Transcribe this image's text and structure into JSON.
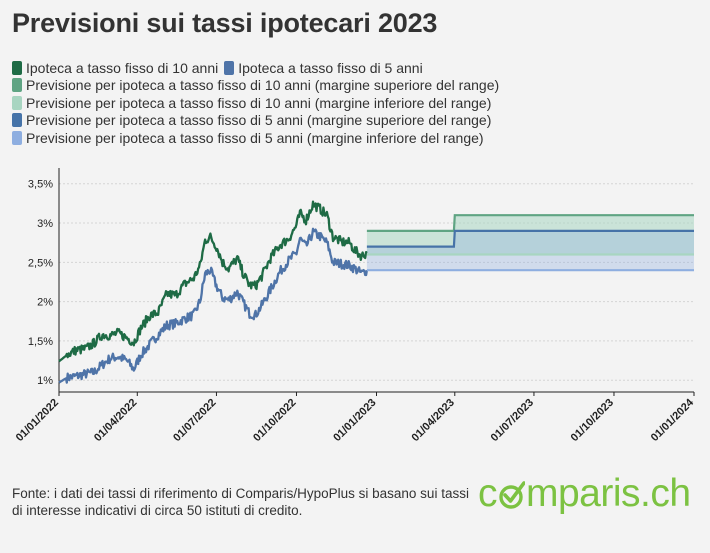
{
  "title": "Previsioni sui tassi ipotecari 2023",
  "legend": [
    {
      "label": "Ipoteca a tasso fisso di 10 anni",
      "color": "#1e6b45"
    },
    {
      "label": "Ipoteca a tasso fisso di 5 anni",
      "color": "#4f74a8"
    },
    {
      "label": "Previsione per ipoteca a tasso fisso di 10 anni (margine superiore del range)",
      "color": "#5fa483"
    },
    {
      "label": "Previsione per ipoteca a tasso fisso di 10 anni (margine inferiore del range)",
      "color": "#a8d5c1"
    },
    {
      "label": "Previsione per ipoteca a tasso fisso di 5 anni (margine superiore del range)",
      "color": "#4673a8"
    },
    {
      "label": "Previsione per ipoteca a tasso fisso di 5 anni (margine inferiore del range)",
      "color": "#8eaee0"
    }
  ],
  "source_text": "Fonte: i dati dei tassi di riferimento di Comparis/HypoPlus si basano sui tassi di interesse indicativi di circa 50 istituti di credito.",
  "logo": {
    "before": "c",
    "after": "mparis.ch"
  },
  "chart_data": {
    "type": "line",
    "x_range": [
      "2022-01-01",
      "2024-01-01"
    ],
    "ylim": [
      0.85,
      3.7
    ],
    "y_ticks": [
      1,
      1.5,
      2,
      2.5,
      3,
      3.5
    ],
    "y_tick_labels": [
      "1%",
      "1,5%",
      "2%",
      "2,5%",
      "3%",
      "3,5%"
    ],
    "x_ticks": [
      "2022-01-01",
      "2022-04-01",
      "2022-07-01",
      "2022-10-01",
      "2023-01-01",
      "2023-04-01",
      "2023-07-01",
      "2023-10-01",
      "2024-01-01"
    ],
    "x_tick_labels": [
      "01/01/2022",
      "01/04/2022",
      "01/07/2022",
      "01/10/2022",
      "01/01/2023",
      "01/04/2023",
      "01/07/2023",
      "01/10/2023",
      "01/01/2024"
    ],
    "grid": "horizontal",
    "series": [
      {
        "name": "Ipoteca a tasso fisso di 10 anni",
        "color": "#1e6b45",
        "points": [
          [
            "2022-01-01",
            1.24
          ],
          [
            "2022-01-10",
            1.32
          ],
          [
            "2022-01-20",
            1.38
          ],
          [
            "2022-02-01",
            1.4
          ],
          [
            "2022-02-10",
            1.47
          ],
          [
            "2022-02-20",
            1.58
          ],
          [
            "2022-03-01",
            1.57
          ],
          [
            "2022-03-10",
            1.6
          ],
          [
            "2022-03-20",
            1.54
          ],
          [
            "2022-03-28",
            1.48
          ],
          [
            "2022-04-05",
            1.66
          ],
          [
            "2022-04-15",
            1.82
          ],
          [
            "2022-04-25",
            1.86
          ],
          [
            "2022-05-05",
            2.1
          ],
          [
            "2022-05-15",
            2.08
          ],
          [
            "2022-05-25",
            2.22
          ],
          [
            "2022-06-05",
            2.3
          ],
          [
            "2022-06-12",
            2.45
          ],
          [
            "2022-06-18",
            2.78
          ],
          [
            "2022-06-24",
            2.82
          ],
          [
            "2022-07-01",
            2.7
          ],
          [
            "2022-07-08",
            2.5
          ],
          [
            "2022-07-15",
            2.42
          ],
          [
            "2022-07-25",
            2.55
          ],
          [
            "2022-08-01",
            2.35
          ],
          [
            "2022-08-08",
            2.21
          ],
          [
            "2022-08-15",
            2.2
          ],
          [
            "2022-08-22",
            2.32
          ],
          [
            "2022-09-01",
            2.55
          ],
          [
            "2022-09-12",
            2.72
          ],
          [
            "2022-09-22",
            2.8
          ],
          [
            "2022-10-01",
            2.97
          ],
          [
            "2022-10-05",
            3.12
          ],
          [
            "2022-10-12",
            3.04
          ],
          [
            "2022-10-20",
            3.24
          ],
          [
            "2022-10-28",
            3.18
          ],
          [
            "2022-11-05",
            3.1
          ],
          [
            "2022-11-12",
            2.82
          ],
          [
            "2022-11-22",
            2.76
          ],
          [
            "2022-12-01",
            2.75
          ],
          [
            "2022-12-07",
            2.65
          ],
          [
            "2022-12-15",
            2.58
          ],
          [
            "2022-12-21",
            2.62
          ]
        ]
      },
      {
        "name": "Ipoteca a tasso fisso di 5 anni",
        "color": "#4f74a8",
        "points": [
          [
            "2022-01-01",
            0.97
          ],
          [
            "2022-01-10",
            1.03
          ],
          [
            "2022-01-20",
            1.05
          ],
          [
            "2022-02-01",
            1.08
          ],
          [
            "2022-02-10",
            1.1
          ],
          [
            "2022-02-20",
            1.2
          ],
          [
            "2022-03-01",
            1.28
          ],
          [
            "2022-03-10",
            1.3
          ],
          [
            "2022-03-20",
            1.25
          ],
          [
            "2022-03-28",
            1.14
          ],
          [
            "2022-04-05",
            1.32
          ],
          [
            "2022-04-15",
            1.45
          ],
          [
            "2022-04-25",
            1.58
          ],
          [
            "2022-05-05",
            1.7
          ],
          [
            "2022-05-15",
            1.72
          ],
          [
            "2022-05-25",
            1.78
          ],
          [
            "2022-06-05",
            1.83
          ],
          [
            "2022-06-12",
            2.0
          ],
          [
            "2022-06-18",
            2.35
          ],
          [
            "2022-06-24",
            2.4
          ],
          [
            "2022-07-01",
            2.2
          ],
          [
            "2022-07-08",
            2.05
          ],
          [
            "2022-07-15",
            2.02
          ],
          [
            "2022-07-25",
            2.12
          ],
          [
            "2022-08-01",
            1.98
          ],
          [
            "2022-08-08",
            1.85
          ],
          [
            "2022-08-15",
            1.83
          ],
          [
            "2022-08-22",
            1.95
          ],
          [
            "2022-09-01",
            2.15
          ],
          [
            "2022-09-12",
            2.38
          ],
          [
            "2022-09-22",
            2.52
          ],
          [
            "2022-10-01",
            2.62
          ],
          [
            "2022-10-05",
            2.8
          ],
          [
            "2022-10-12",
            2.7
          ],
          [
            "2022-10-20",
            2.88
          ],
          [
            "2022-10-28",
            2.83
          ],
          [
            "2022-11-05",
            2.75
          ],
          [
            "2022-11-12",
            2.5
          ],
          [
            "2022-11-22",
            2.48
          ],
          [
            "2022-12-01",
            2.46
          ],
          [
            "2022-12-07",
            2.42
          ],
          [
            "2022-12-15",
            2.36
          ],
          [
            "2022-12-21",
            2.4
          ]
        ]
      },
      {
        "name": "Previsione per ipoteca a tasso fisso di 10 anni (margine superiore del range)",
        "color": "#5fa483",
        "points": [
          [
            "2022-12-21",
            2.9
          ],
          [
            "2023-03-31",
            2.9
          ],
          [
            "2023-04-01",
            3.1
          ],
          [
            "2024-01-01",
            3.1
          ]
        ]
      },
      {
        "name": "Previsione per ipoteca a tasso fisso di 10 anni (margine inferiore del range)",
        "color": "#a8d5c1",
        "points": [
          [
            "2022-12-21",
            2.6
          ],
          [
            "2024-01-01",
            2.6
          ]
        ]
      },
      {
        "name": "Previsione per ipoteca a tasso fisso di 5 anni (margine superiore del range)",
        "color": "#4673a8",
        "points": [
          [
            "2022-12-21",
            2.7
          ],
          [
            "2023-03-31",
            2.7
          ],
          [
            "2023-04-01",
            2.9
          ],
          [
            "2024-01-01",
            2.9
          ]
        ]
      },
      {
        "name": "Previsione per ipoteca a tasso fisso di 5 anni (margine inferiore del range)",
        "color": "#8eaee0",
        "points": [
          [
            "2022-12-21",
            2.4
          ],
          [
            "2024-01-01",
            2.4
          ]
        ]
      }
    ]
  }
}
